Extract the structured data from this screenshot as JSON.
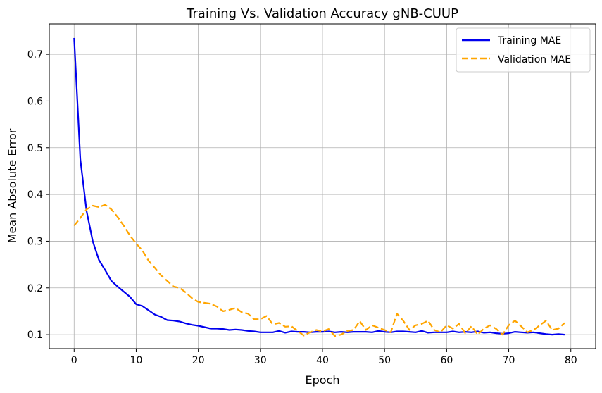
{
  "chart_data": {
    "type": "line",
    "title": "Training Vs. Validation Accuracy gNB-CUUP",
    "xlabel": "Epoch",
    "ylabel": "Mean Absolute Error",
    "xlim": [
      -4,
      84
    ],
    "ylim": [
      0.07,
      0.765
    ],
    "xticks": [
      0,
      10,
      20,
      30,
      40,
      50,
      60,
      70,
      80
    ],
    "yticks": [
      0.1,
      0.2,
      0.3,
      0.4,
      0.5,
      0.6,
      0.7
    ],
    "grid": true,
    "legend_position": "top-right",
    "x": [
      0,
      1,
      2,
      3,
      4,
      5,
      6,
      7,
      8,
      9,
      10,
      11,
      12,
      13,
      14,
      15,
      16,
      17,
      18,
      19,
      20,
      21,
      22,
      23,
      24,
      25,
      26,
      27,
      28,
      29,
      30,
      31,
      32,
      33,
      34,
      35,
      36,
      37,
      38,
      39,
      40,
      41,
      42,
      43,
      44,
      45,
      46,
      47,
      48,
      49,
      50,
      51,
      52,
      53,
      54,
      55,
      56,
      57,
      58,
      59,
      60,
      61,
      62,
      63,
      64,
      65,
      66,
      67,
      68,
      69,
      70,
      71,
      72,
      73,
      74,
      75,
      76,
      77,
      78,
      79
    ],
    "series": [
      {
        "name": "Training MAE",
        "color": "#0000ee",
        "style": "solid",
        "values": [
          0.735,
          0.475,
          0.365,
          0.3,
          0.26,
          0.238,
          0.215,
          0.203,
          0.192,
          0.181,
          0.165,
          0.161,
          0.152,
          0.143,
          0.138,
          0.131,
          0.13,
          0.128,
          0.124,
          0.121,
          0.119,
          0.116,
          0.113,
          0.113,
          0.112,
          0.11,
          0.111,
          0.11,
          0.108,
          0.107,
          0.105,
          0.105,
          0.105,
          0.108,
          0.104,
          0.107,
          0.106,
          0.106,
          0.105,
          0.106,
          0.106,
          0.107,
          0.105,
          0.106,
          0.105,
          0.106,
          0.106,
          0.106,
          0.105,
          0.108,
          0.106,
          0.105,
          0.107,
          0.107,
          0.106,
          0.105,
          0.108,
          0.104,
          0.105,
          0.105,
          0.105,
          0.107,
          0.105,
          0.106,
          0.105,
          0.107,
          0.104,
          0.105,
          0.103,
          0.102,
          0.103,
          0.106,
          0.105,
          0.104,
          0.105,
          0.103,
          0.101,
          0.1,
          0.101,
          0.1
        ]
      },
      {
        "name": "Validation MAE",
        "color": "#ffa500",
        "style": "dashed",
        "values": [
          0.333,
          0.35,
          0.368,
          0.376,
          0.373,
          0.378,
          0.368,
          0.352,
          0.333,
          0.312,
          0.295,
          0.28,
          0.258,
          0.243,
          0.227,
          0.215,
          0.203,
          0.2,
          0.19,
          0.178,
          0.17,
          0.168,
          0.166,
          0.16,
          0.15,
          0.153,
          0.157,
          0.148,
          0.145,
          0.133,
          0.133,
          0.14,
          0.122,
          0.125,
          0.117,
          0.118,
          0.108,
          0.098,
          0.105,
          0.11,
          0.107,
          0.112,
          0.097,
          0.1,
          0.108,
          0.11,
          0.129,
          0.11,
          0.12,
          0.115,
          0.11,
          0.105,
          0.145,
          0.13,
          0.11,
          0.12,
          0.123,
          0.13,
          0.11,
          0.105,
          0.12,
          0.113,
          0.123,
          0.103,
          0.118,
          0.1,
          0.113,
          0.12,
          0.112,
          0.1,
          0.12,
          0.13,
          0.118,
          0.105,
          0.11,
          0.12,
          0.13,
          0.11,
          0.113,
          0.125
        ]
      }
    ]
  }
}
